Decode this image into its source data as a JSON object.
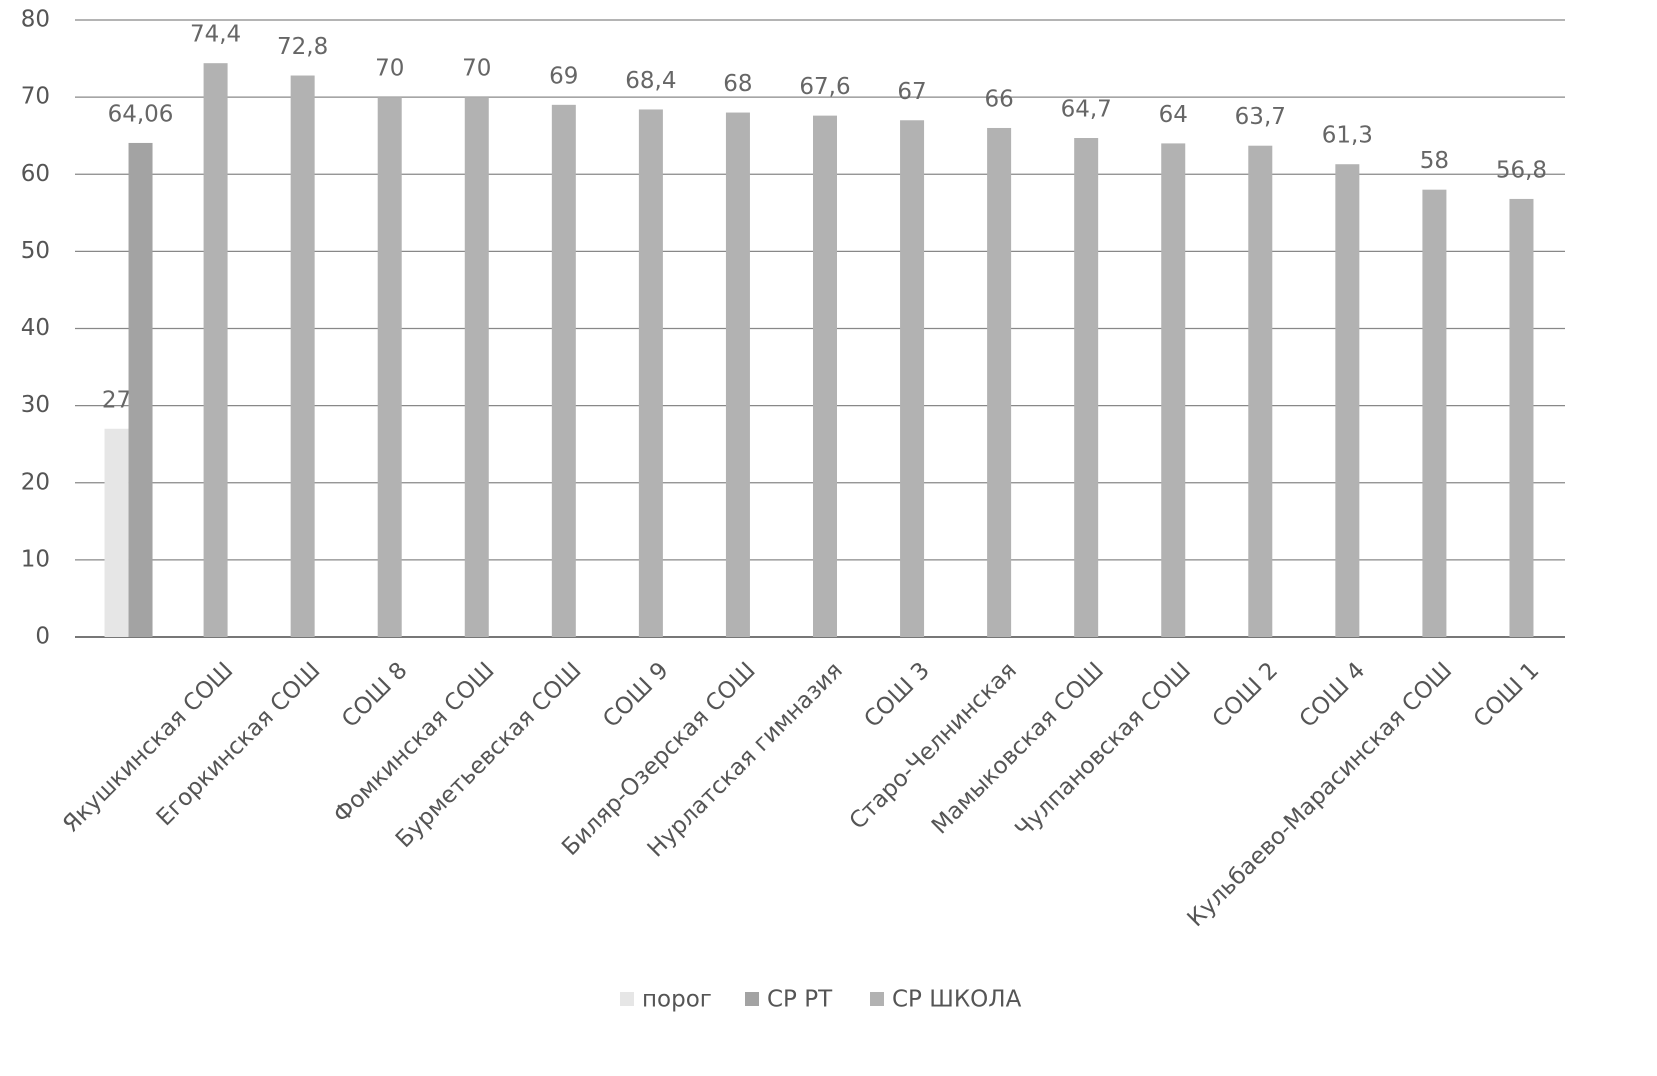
{
  "chart_data": {
    "type": "bar",
    "categories": [
      null,
      "Якушкинская СОШ",
      "Егоркинская СОШ",
      "СОШ 8",
      "Фомкинская СОШ",
      "Бурметьевская СОШ",
      "СОШ 9",
      "Биляр-Озерская СОШ",
      "Нурлатская гимназия",
      "СОШ 3",
      "Старо-Челнинская",
      "Мамыковская СОШ",
      "Чулпановская СОШ",
      "СОШ 2",
      "СОШ 4",
      "Кульбаево-Марасинская СОШ",
      "СОШ 1"
    ],
    "series": [
      {
        "name": "порог",
        "color": "#e6e6e6",
        "values": [
          27,
          null,
          null,
          null,
          null,
          null,
          null,
          null,
          null,
          null,
          null,
          null,
          null,
          null,
          null,
          null,
          null
        ],
        "value_labels": [
          "27",
          null,
          null,
          null,
          null,
          null,
          null,
          null,
          null,
          null,
          null,
          null,
          null,
          null,
          null,
          null,
          null
        ]
      },
      {
        "name": "СР РТ",
        "color": "#a3a3a3",
        "values": [
          64.06,
          null,
          null,
          null,
          null,
          null,
          null,
          null,
          null,
          null,
          null,
          null,
          null,
          null,
          null,
          null,
          null
        ],
        "value_labels": [
          "64,06",
          null,
          null,
          null,
          null,
          null,
          null,
          null,
          null,
          null,
          null,
          null,
          null,
          null,
          null,
          null,
          null
        ]
      },
      {
        "name": "СР ШКОЛА",
        "color": "#b2b2b2",
        "values": [
          null,
          74.4,
          72.8,
          70,
          70,
          69,
          68.4,
          68,
          67.6,
          67,
          66,
          64.7,
          64,
          63.7,
          61.3,
          58,
          56.8
        ],
        "value_labels": [
          null,
          "74,4",
          "72,8",
          "70",
          "70",
          "69",
          "68,4",
          "68",
          "67,6",
          "67",
          "66",
          "64,7",
          "64",
          "63,7",
          "61,3",
          "58",
          "56,8"
        ]
      }
    ],
    "ylim": [
      0,
      80
    ],
    "yticks": [
      0,
      10,
      20,
      30,
      40,
      50,
      60,
      70,
      80
    ],
    "grid": true,
    "legend": "bottom"
  }
}
